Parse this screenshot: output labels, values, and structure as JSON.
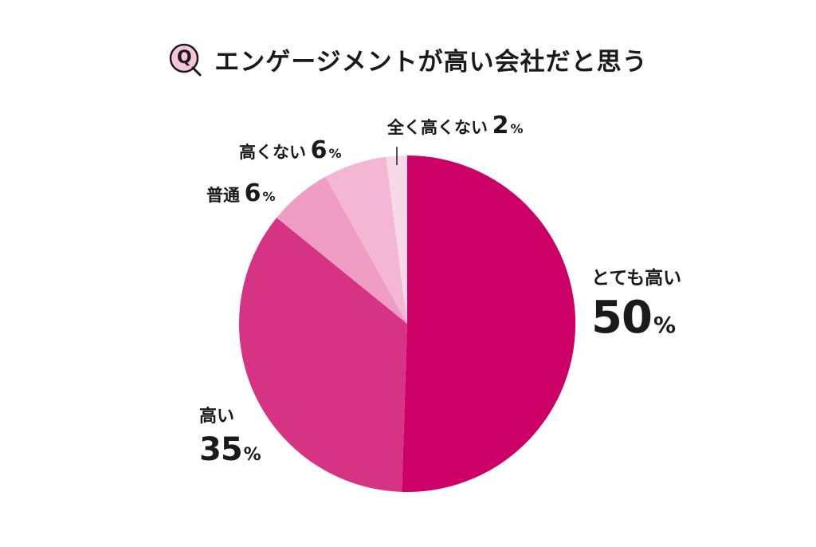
{
  "title": {
    "badge": "Q",
    "text": "エンゲージメントが高い会社だと思う"
  },
  "chart_data": {
    "type": "pie",
    "title": "エンゲージメントが高い会社だと思う",
    "start": "12 o'clock, clockwise",
    "slices": [
      {
        "label": "とても高い",
        "value": 50,
        "display": "50",
        "color": "#cc0066"
      },
      {
        "label": "高い",
        "value": 35,
        "display": "35",
        "color": "#d63384"
      },
      {
        "label": "普通",
        "value": 6,
        "display": "6",
        "color": "#ef9dc3"
      },
      {
        "label": "高くない",
        "value": 6,
        "display": "6",
        "color": "#f3b6d3"
      },
      {
        "label": "全く高くない",
        "value": 2,
        "display": "2",
        "color": "#f8d9e7"
      }
    ],
    "unit": "%"
  }
}
